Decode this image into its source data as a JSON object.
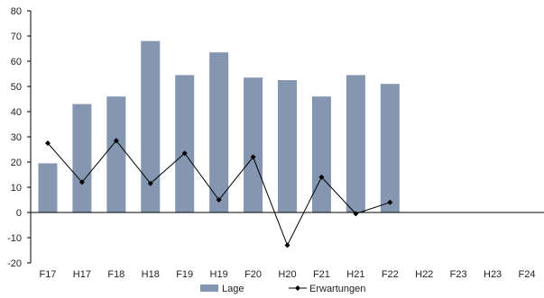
{
  "chart_data": {
    "type": "bar+line",
    "title": "",
    "xlabel": "",
    "ylabel": "",
    "ylim": [
      -20,
      80
    ],
    "yticks": [
      -20,
      -10,
      0,
      10,
      20,
      30,
      40,
      50,
      60,
      70,
      80
    ],
    "grid": false,
    "legend_position": "bottom",
    "categories": [
      "F17",
      "H17",
      "F18",
      "H18",
      "F19",
      "H19",
      "F20",
      "H20",
      "F21",
      "H21",
      "F22",
      "H22",
      "F23",
      "H23",
      "F24"
    ],
    "series": [
      {
        "name": "Lage",
        "kind": "bar",
        "color": "#8496b0",
        "values": [
          19.5,
          43,
          46,
          68,
          54.5,
          63.5,
          53.5,
          52.5,
          46,
          54.5,
          51,
          null,
          null,
          null,
          null
        ]
      },
      {
        "name": "Erwartungen",
        "kind": "line",
        "color": "#000000",
        "values": [
          27.5,
          12,
          28.5,
          11.5,
          23.5,
          5,
          22,
          -13,
          14,
          -0.5,
          4,
          null,
          null,
          null,
          null
        ]
      }
    ]
  }
}
